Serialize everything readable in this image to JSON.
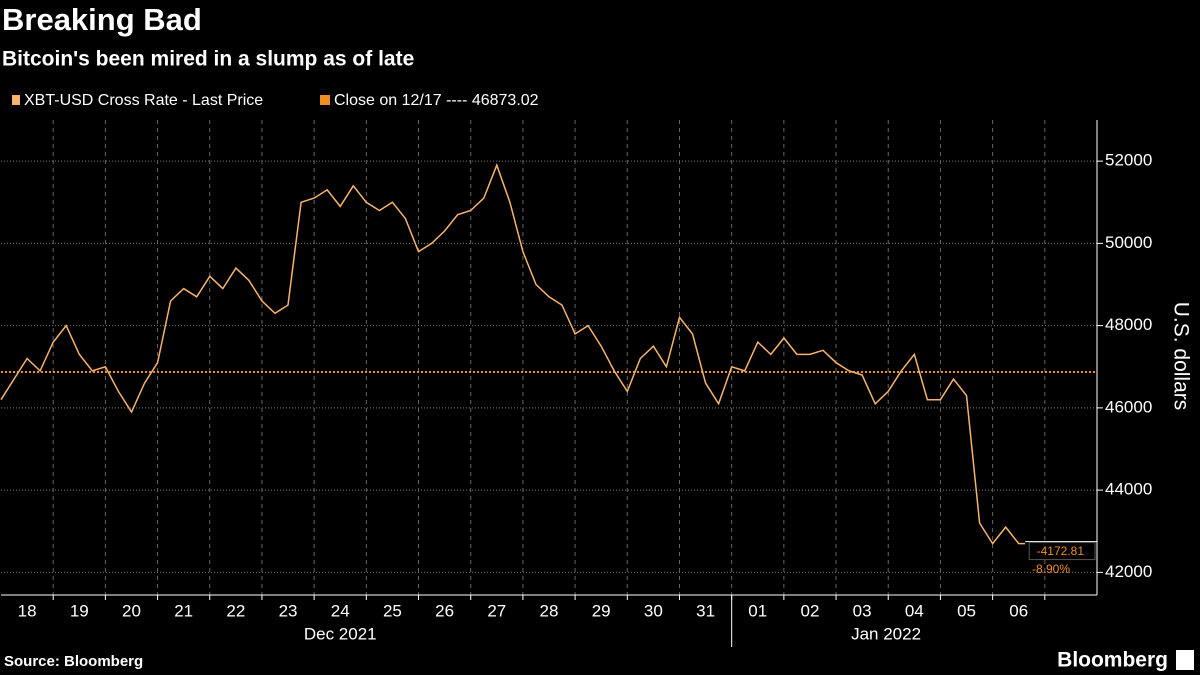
{
  "chart_data": {
    "type": "line",
    "title": "Breaking Bad",
    "subtitle": "Bitcoin's been mired in a slump as of late",
    "y_label": "U.S. dollars",
    "source": "Source: Bloomberg",
    "brand": "Bloomberg",
    "series": [
      {
        "name": "XBT-USD Cross Rate - Last Price",
        "color": "#f7b36b",
        "x": [
          "2021-12-18T00:00",
          "2021-12-18T06:00",
          "2021-12-18T12:00",
          "2021-12-18T18:00",
          "2021-12-19T00:00",
          "2021-12-19T06:00",
          "2021-12-19T12:00",
          "2021-12-19T18:00",
          "2021-12-20T00:00",
          "2021-12-20T06:00",
          "2021-12-20T12:00",
          "2021-12-20T18:00",
          "2021-12-21T00:00",
          "2021-12-21T06:00",
          "2021-12-21T12:00",
          "2021-12-21T18:00",
          "2021-12-22T00:00",
          "2021-12-22T06:00",
          "2021-12-22T12:00",
          "2021-12-22T18:00",
          "2021-12-23T00:00",
          "2021-12-23T06:00",
          "2021-12-23T12:00",
          "2021-12-23T18:00",
          "2021-12-24T00:00",
          "2021-12-24T06:00",
          "2021-12-24T12:00",
          "2021-12-24T18:00",
          "2021-12-25T00:00",
          "2021-12-25T06:00",
          "2021-12-25T12:00",
          "2021-12-25T18:00",
          "2021-12-26T00:00",
          "2021-12-26T06:00",
          "2021-12-26T12:00",
          "2021-12-26T18:00",
          "2021-12-27T00:00",
          "2021-12-27T06:00",
          "2021-12-27T12:00",
          "2021-12-27T18:00",
          "2021-12-28T00:00",
          "2021-12-28T06:00",
          "2021-12-28T12:00",
          "2021-12-28T18:00",
          "2021-12-29T00:00",
          "2021-12-29T06:00",
          "2021-12-29T12:00",
          "2021-12-29T18:00",
          "2021-12-30T00:00",
          "2021-12-30T06:00",
          "2021-12-30T12:00",
          "2021-12-30T18:00",
          "2021-12-31T00:00",
          "2021-12-31T06:00",
          "2021-12-31T12:00",
          "2021-12-31T18:00",
          "2022-01-01T00:00",
          "2022-01-01T06:00",
          "2022-01-01T12:00",
          "2022-01-01T18:00",
          "2022-01-02T00:00",
          "2022-01-02T06:00",
          "2022-01-02T12:00",
          "2022-01-02T18:00",
          "2022-01-03T00:00",
          "2022-01-03T06:00",
          "2022-01-03T12:00",
          "2022-01-03T18:00",
          "2022-01-04T00:00",
          "2022-01-04T06:00",
          "2022-01-04T12:00",
          "2022-01-04T18:00",
          "2022-01-05T00:00",
          "2022-01-05T06:00",
          "2022-01-05T12:00",
          "2022-01-05T18:00",
          "2022-01-06T00:00",
          "2022-01-06T06:00",
          "2022-01-06T12:00",
          "2022-01-06T15:00"
        ],
        "values": [
          46200,
          46700,
          47200,
          46900,
          47600,
          48000,
          47300,
          46900,
          47000,
          46400,
          45900,
          46600,
          47100,
          48600,
          48900,
          48700,
          49200,
          48900,
          49400,
          49100,
          48600,
          48300,
          48500,
          51000,
          51100,
          51300,
          50900,
          51400,
          51000,
          50800,
          51000,
          50600,
          49800,
          50000,
          50300,
          50700,
          50800,
          51100,
          51900,
          51000,
          49800,
          49000,
          48700,
          48500,
          47800,
          48000,
          47500,
          46900,
          46400,
          47200,
          47500,
          47000,
          48200,
          47800,
          46600,
          46100,
          47000,
          46900,
          47600,
          47300,
          47700,
          47300,
          47300,
          47400,
          47100,
          46900,
          46800,
          46100,
          46400,
          46900,
          47300,
          46200,
          46200,
          46700,
          46300,
          43200,
          42700,
          43100,
          42700,
          42700.21
        ]
      }
    ],
    "reference_line": {
      "label": "Close on 12/17 ---- 46873.02",
      "value": 46873.02,
      "color": "#f0901e"
    },
    "change_labels": [
      "-4172.81",
      "-8.90%"
    ],
    "xlim": [
      "2021-12-18T00:00",
      "2022-01-08T00:00"
    ],
    "xticks": [
      {
        "value": "2021-12-18T12:00",
        "label": "18"
      },
      {
        "value": "2021-12-19T12:00",
        "label": "19"
      },
      {
        "value": "2021-12-20T12:00",
        "label": "20"
      },
      {
        "value": "2021-12-21T12:00",
        "label": "21"
      },
      {
        "value": "2021-12-22T12:00",
        "label": "22"
      },
      {
        "value": "2021-12-23T12:00",
        "label": "23"
      },
      {
        "value": "2021-12-24T12:00",
        "label": "24"
      },
      {
        "value": "2021-12-25T12:00",
        "label": "25"
      },
      {
        "value": "2021-12-26T12:00",
        "label": "26"
      },
      {
        "value": "2021-12-27T12:00",
        "label": "27"
      },
      {
        "value": "2021-12-28T12:00",
        "label": "28"
      },
      {
        "value": "2021-12-29T12:00",
        "label": "29"
      },
      {
        "value": "2021-12-30T12:00",
        "label": "30"
      },
      {
        "value": "2021-12-31T12:00",
        "label": "31"
      },
      {
        "value": "2022-01-01T12:00",
        "label": "01"
      },
      {
        "value": "2022-01-02T12:00",
        "label": "02"
      },
      {
        "value": "2022-01-03T12:00",
        "label": "03"
      },
      {
        "value": "2022-01-04T12:00",
        "label": "04"
      },
      {
        "value": "2022-01-05T12:00",
        "label": "05"
      },
      {
        "value": "2022-01-06T12:00",
        "label": "06"
      }
    ],
    "month_labels": [
      {
        "value": "2021-12-24T12:00",
        "label": "Dec 2021"
      },
      {
        "value": "2022-01-03T23:00",
        "label": "Jan 2022"
      }
    ],
    "month_break": "2022-01-01T00:00",
    "ylim": [
      41450,
      53000
    ],
    "yticks": [
      42000,
      44000,
      46000,
      48000,
      50000,
      52000
    ],
    "grid": true
  }
}
